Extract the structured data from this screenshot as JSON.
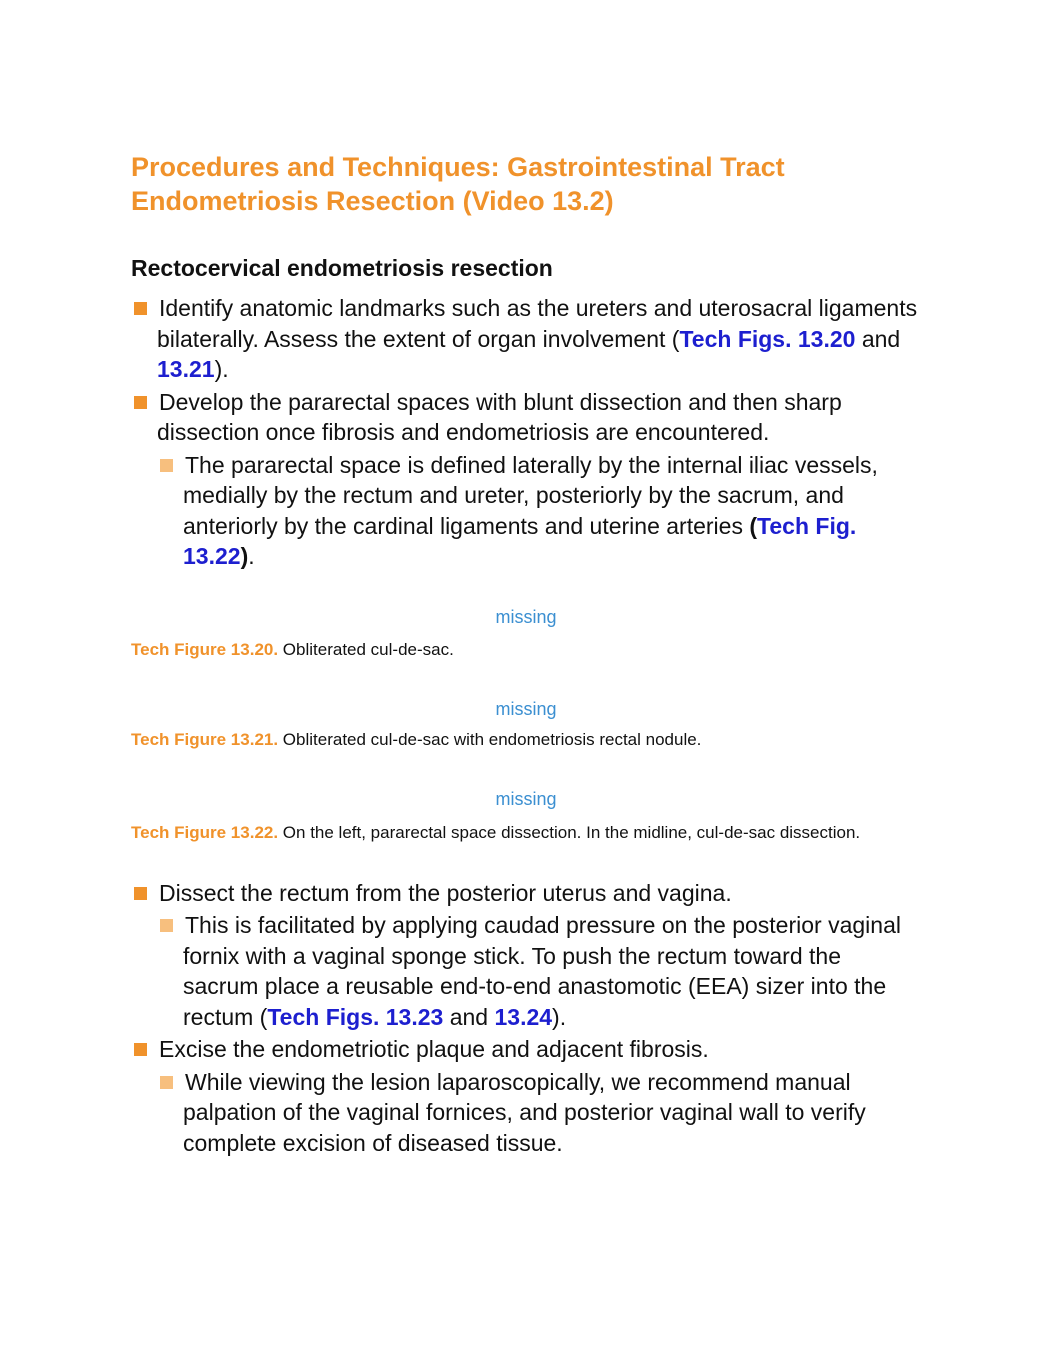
{
  "heading": {
    "title": "Procedures and Techniques: Gastrointestinal Tract Endometriosis Resection (Video 13.2)",
    "subhead": "Rectocervical endometriosis resection"
  },
  "colors": {
    "accent": "#f0922b",
    "accent_light": "#f7bf7e",
    "link": "#1d1fcf",
    "missing": "#3b8fd1"
  },
  "list1": {
    "b1": {
      "t1": "Identify anatomic landmarks such as the ureters and uterosacral ligaments bilaterally. Assess the extent of organ involvement (",
      "link1": "Tech Figs. 13.20",
      "t2": " and ",
      "link2": "13.21",
      "t3": ")."
    },
    "b2": {
      "t1": "Develop the pararectal spaces with blunt dissection and then sharp dissection once fibrosis and endometriosis are encountered."
    },
    "b2a": {
      "t1": "The pararectal space is defined laterally by the internal iliac vessels, medially by the rectum and ureter, posteriorly by the sacrum, and anteriorly by the cardinal ligaments and uterine arteries ",
      "paren_open": "(",
      "link1": "Tech Fig. 13.22",
      "paren_close": ")",
      "t2": "."
    }
  },
  "figures": [
    {
      "placeholder": "missing",
      "label": "Tech Figure 13.20.",
      "caption": " Obliterated cul-de-sac."
    },
    {
      "placeholder": "missing",
      "label": "Tech Figure 13.21.",
      "caption": " Obliterated cul-de-sac with endometriosis rectal nodule."
    },
    {
      "placeholder": "missing",
      "label": "Tech Figure 13.22.",
      "caption": " On the left, pararectal space dissection. In the midline, cul-de-sac dissection."
    }
  ],
  "list2": {
    "b1": {
      "t1": "Dissect the rectum from the posterior uterus and vagina."
    },
    "b1a": {
      "t1": "This is facilitated by applying caudad pressure on the posterior vaginal fornix with a vaginal sponge stick. To push the rectum toward the sacrum place a reusable end-to-end anastomotic (EEA) sizer into the rectum (",
      "link1": "Tech Figs. 13.23",
      "t2": " and ",
      "link2": "13.24",
      "t3": ")."
    },
    "b2": {
      "t1": "Excise the endometriotic plaque and adjacent fibrosis."
    },
    "b2a": {
      "t1": "While viewing the lesion laparoscopically, we recommend manual palpation of the vaginal fornices, and posterior vaginal wall to verify complete excision of diseased tissue."
    }
  }
}
